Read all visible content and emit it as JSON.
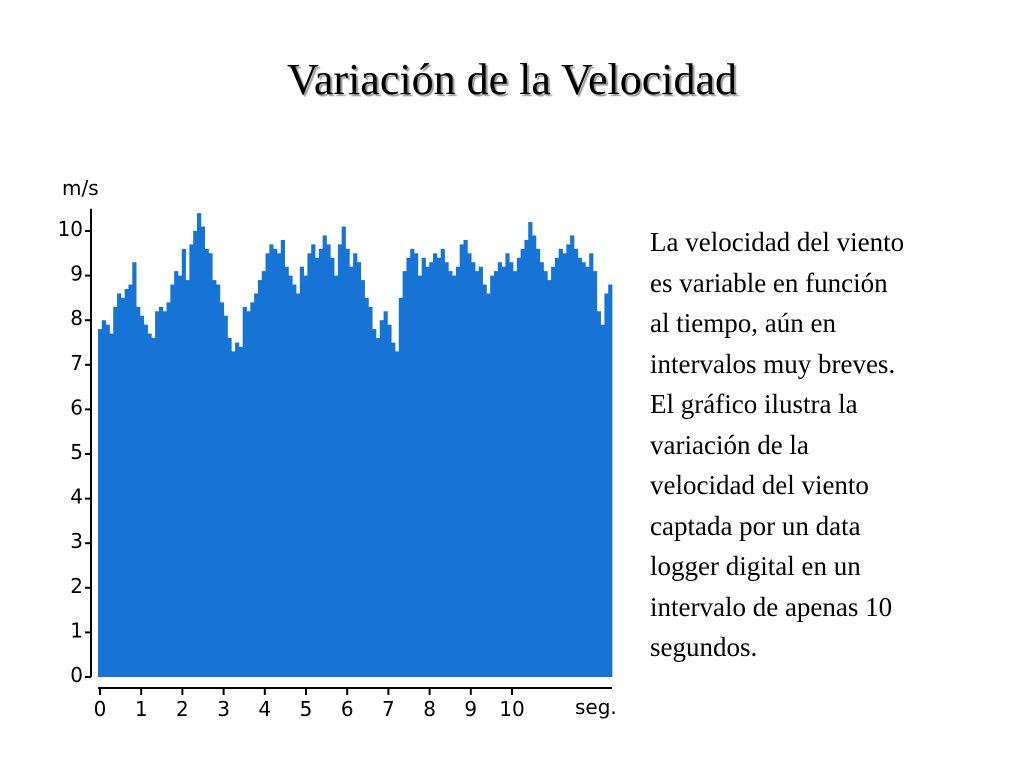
{
  "slide": {
    "title": "Variación de la Velocidad",
    "description": "La velocidad del viento\nes variable en función\nal tiempo, aún en\nintervalos muy breves.\nEl gráfico ilustra la\nvariación de la\nvelocidad del viento\ncaptada por un data\nlogger digital en un\nintervalo de apenas 10\nsegundos."
  },
  "chart_data": {
    "type": "bar",
    "title": "",
    "xlabel": "seg.",
    "ylabel": "m/s",
    "xlim": [
      0,
      12.5
    ],
    "ylim": [
      0,
      10.5
    ],
    "x_ticks": [
      "0",
      "1",
      "2",
      "3",
      "4",
      "5",
      "6",
      "7",
      "8",
      "9",
      "10"
    ],
    "y_ticks": [
      "0",
      "1",
      "2",
      "3",
      "4",
      "5",
      "6",
      "7",
      "8",
      "9",
      "10"
    ],
    "bar_color": "#1874d4",
    "grid": false,
    "values": [
      7.8,
      8.0,
      7.9,
      7.7,
      8.3,
      8.6,
      8.5,
      8.7,
      8.8,
      9.3,
      8.3,
      8.1,
      7.9,
      7.7,
      7.6,
      8.2,
      8.3,
      8.2,
      8.4,
      8.8,
      9.1,
      9.0,
      9.6,
      8.9,
      9.7,
      10.0,
      10.4,
      10.1,
      9.6,
      9.5,
      8.9,
      8.8,
      8.4,
      8.1,
      7.6,
      7.3,
      7.5,
      7.4,
      8.3,
      8.2,
      8.4,
      8.6,
      8.9,
      9.1,
      9.5,
      9.7,
      9.6,
      9.5,
      9.8,
      9.2,
      9.0,
      8.8,
      8.6,
      9.2,
      9.0,
      9.5,
      9.7,
      9.4,
      9.6,
      9.9,
      9.7,
      9.4,
      9.0,
      9.7,
      10.1,
      9.6,
      9.2,
      9.5,
      9.3,
      8.9,
      8.5,
      8.3,
      7.8,
      7.6,
      8.0,
      8.2,
      7.9,
      7.5,
      7.3,
      8.5,
      9.1,
      9.4,
      9.6,
      9.5,
      9.0,
      9.4,
      9.2,
      9.3,
      9.5,
      9.4,
      9.6,
      9.3,
      9.1,
      9.0,
      9.2,
      9.7,
      9.8,
      9.5,
      9.3,
      9.1,
      9.2,
      8.8,
      8.6,
      9.0,
      9.1,
      9.3,
      9.2,
      9.5,
      9.3,
      9.1,
      9.4,
      9.6,
      9.8,
      10.2,
      9.9,
      9.6,
      9.3,
      9.1,
      8.9,
      9.2,
      9.4,
      9.6,
      9.5,
      9.7,
      9.9,
      9.6,
      9.4,
      9.3,
      9.2,
      9.5,
      9.1,
      8.2,
      7.9,
      8.6,
      8.8
    ]
  }
}
